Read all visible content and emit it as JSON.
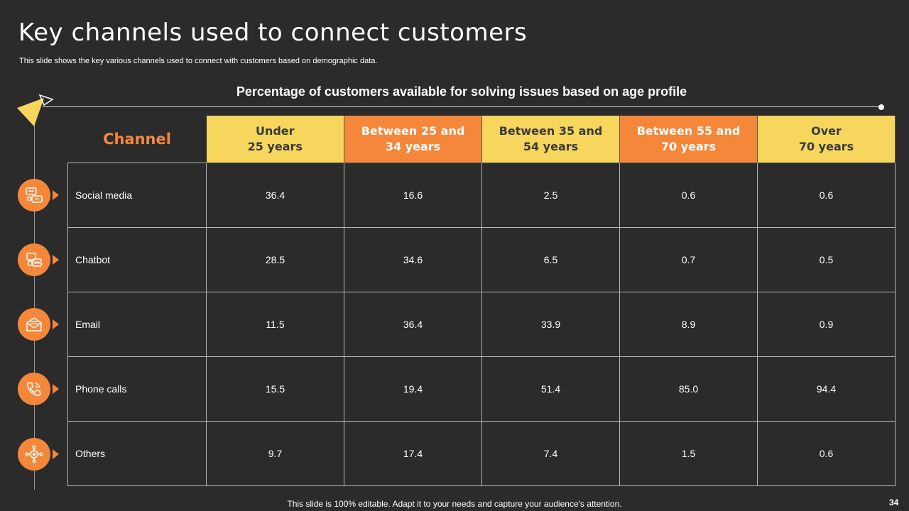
{
  "slide": {
    "title": "Key channels used to connect customers",
    "subtitle": "This slide shows the key various channels used to connect with customers based on demographic data.",
    "table_title": "Percentage of customers available for solving issues based on age profile",
    "footer": "This slide is 100% editable. Adapt it to your needs and capture your audience's attention.",
    "page_number": "34"
  },
  "colors": {
    "background": "#2b2b2b",
    "accent_orange": "#f5873a",
    "accent_yellow": "#f6d65c"
  },
  "table": {
    "channel_header": "Channel",
    "columns": [
      {
        "line1": "Under",
        "line2": "25 years"
      },
      {
        "line1": "Between 25 and",
        "line2": "34 years"
      },
      {
        "line1": "Between 35 and",
        "line2": "54 years"
      },
      {
        "line1": "Between 55 and",
        "line2": "70 years"
      },
      {
        "line1": "Over",
        "line2": "70 years"
      }
    ],
    "rows": [
      {
        "channel": "Social media",
        "icon": "social-media-icon",
        "values": [
          "36.4",
          "16.6",
          "2.5",
          "0.6",
          "0.6"
        ]
      },
      {
        "channel": "Chatbot",
        "icon": "chatbot-icon",
        "values": [
          "28.5",
          "34.6",
          "6.5",
          "0.7",
          "0.5"
        ]
      },
      {
        "channel": "Email",
        "icon": "email-icon",
        "values": [
          "11.5",
          "36.4",
          "33.9",
          "8.9",
          "0.9"
        ]
      },
      {
        "channel": "Phone calls",
        "icon": "phone-icon",
        "values": [
          "15.5",
          "19.4",
          "51.4",
          "85.0",
          "94.4"
        ]
      },
      {
        "channel": "Others",
        "icon": "network-icon",
        "values": [
          "9.7",
          "17.4",
          "7.4",
          "1.5",
          "0.6"
        ]
      }
    ]
  }
}
